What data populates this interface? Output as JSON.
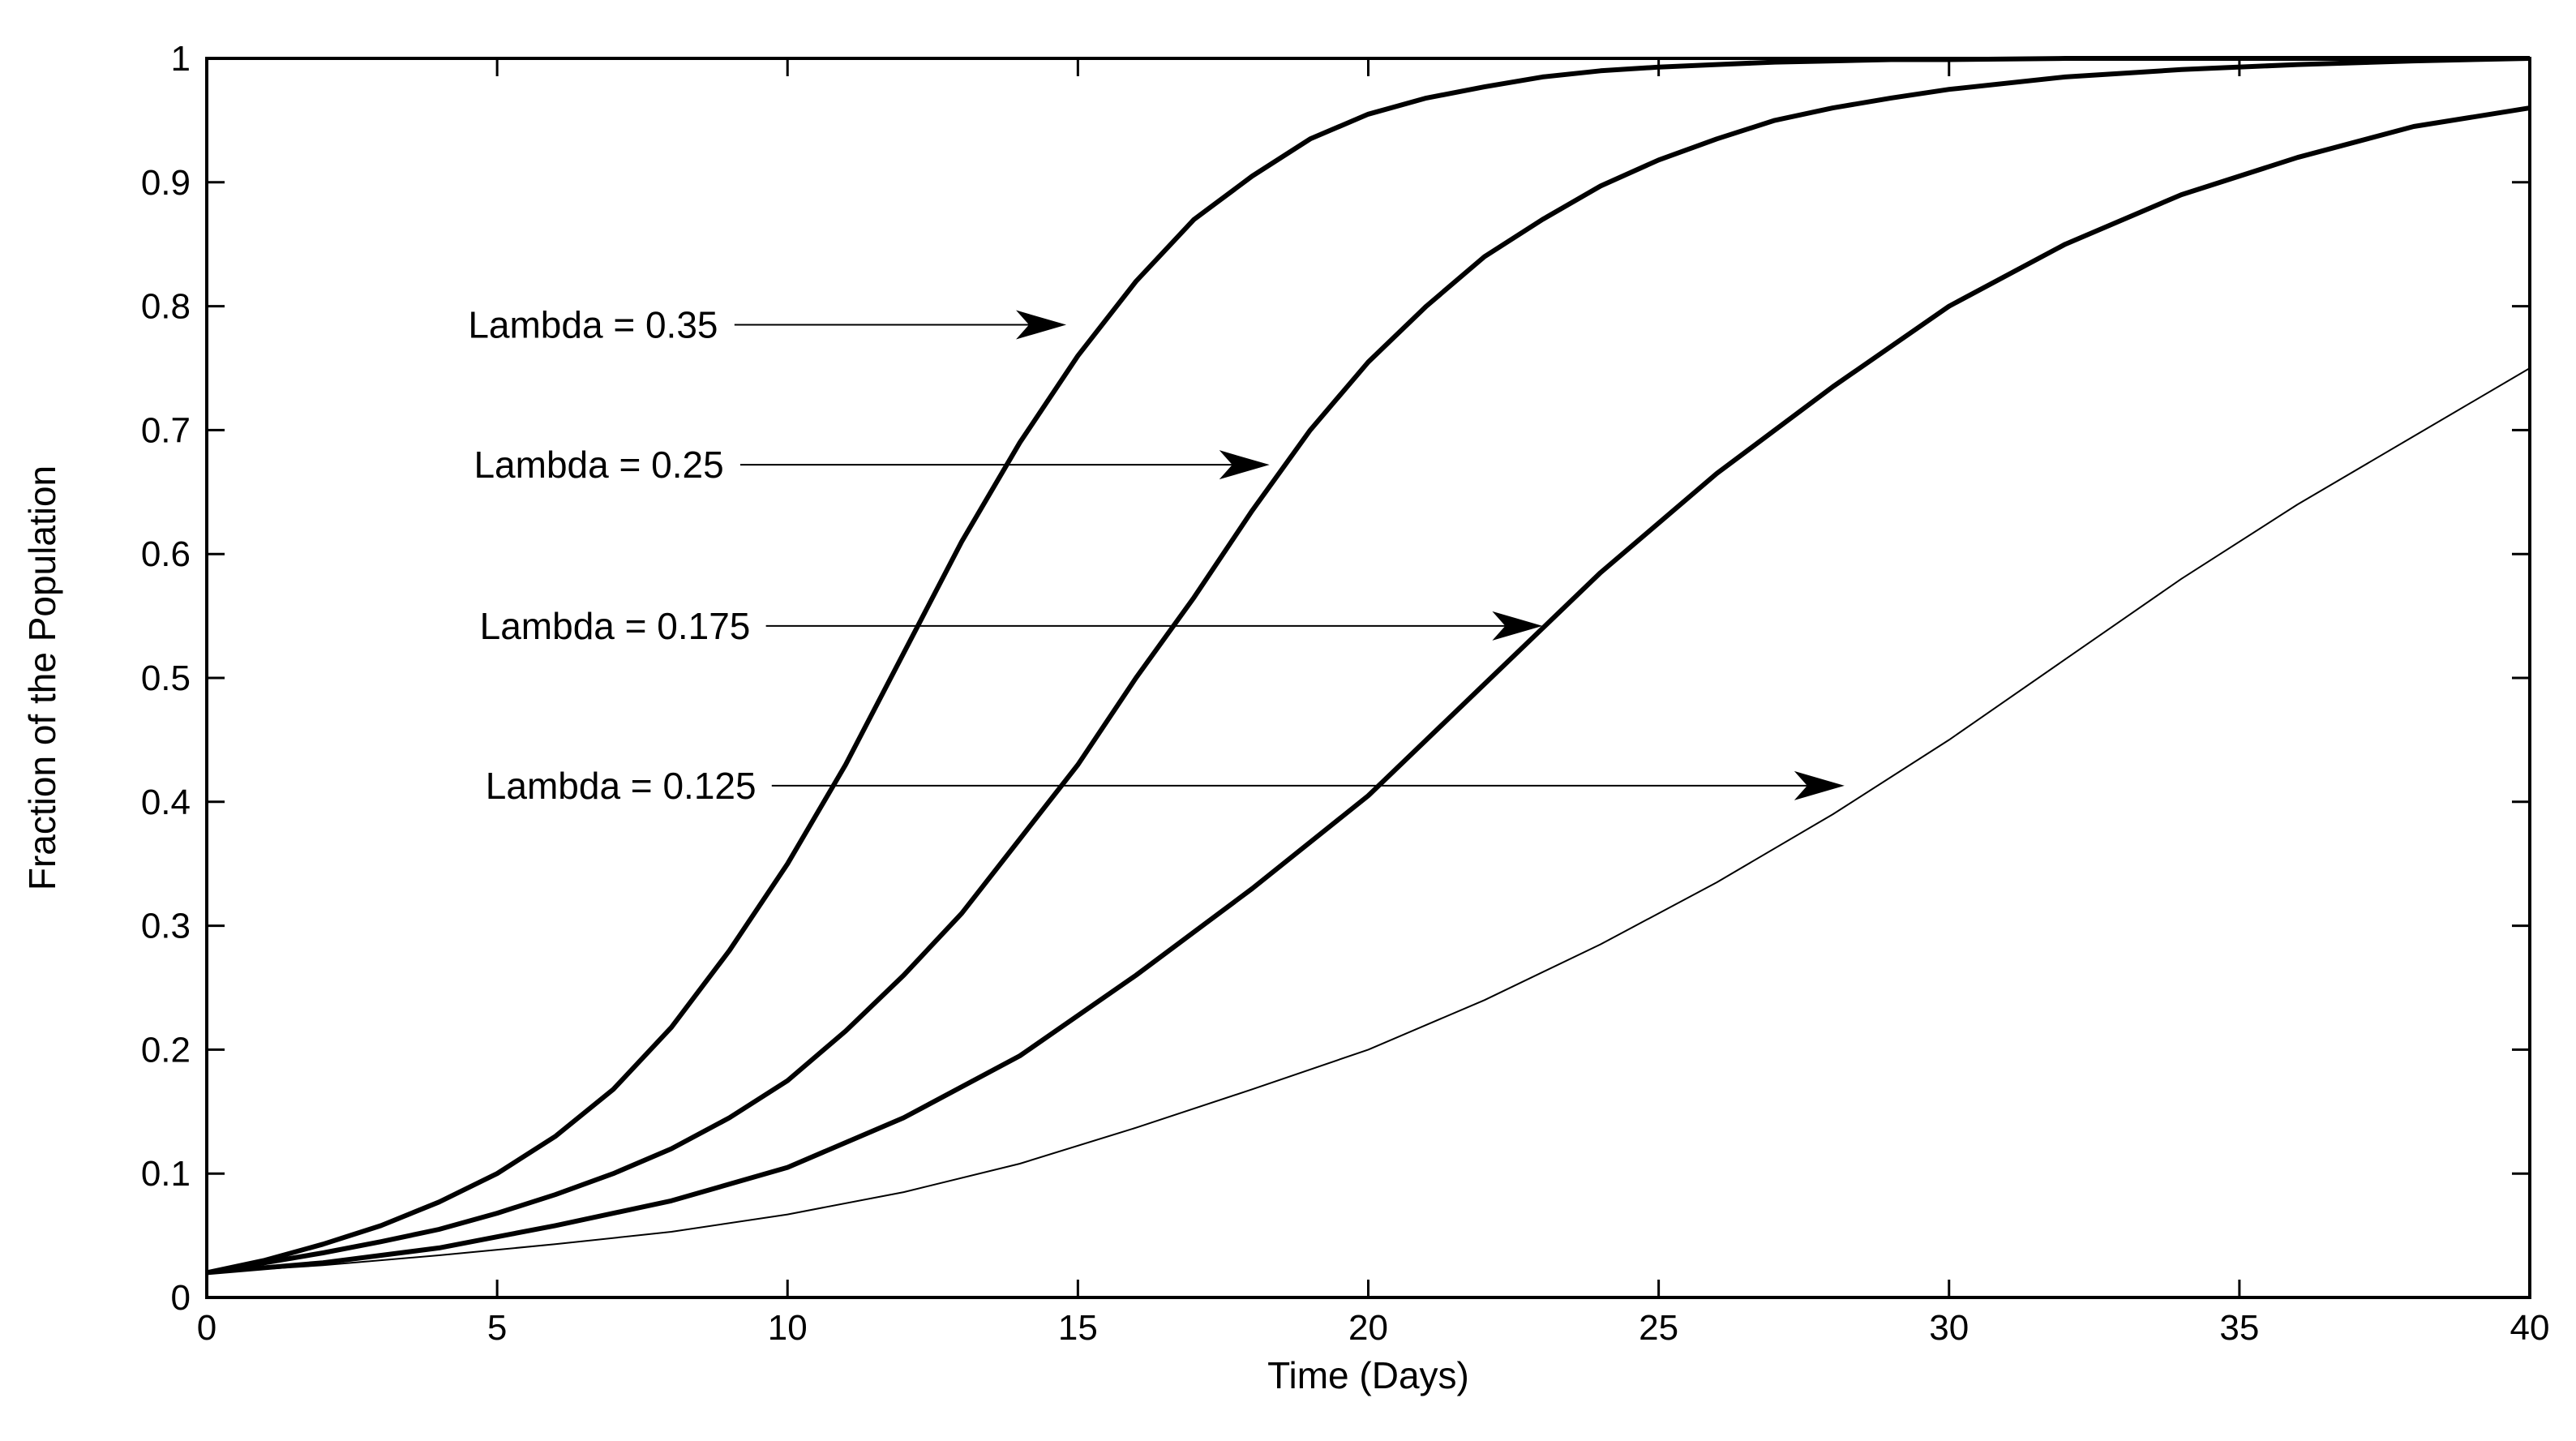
{
  "chart_data": {
    "type": "line",
    "title": "",
    "xlabel": "Time (Days)",
    "ylabel": "Fraction of the Population",
    "xlim": [
      0,
      40
    ],
    "ylim": [
      0,
      1
    ],
    "grid": false,
    "x_ticks": [
      0,
      5,
      10,
      15,
      20,
      25,
      30,
      35,
      40
    ],
    "x_tick_labels": [
      "0",
      "5",
      "10",
      "15",
      "20",
      "25",
      "30",
      "35",
      "40"
    ],
    "y_ticks": [
      0,
      0.1,
      0.2,
      0.3,
      0.4,
      0.5,
      0.6,
      0.7,
      0.8,
      0.9,
      1
    ],
    "y_tick_labels": [
      "0",
      "0.1",
      "0.2",
      "0.3",
      "0.4",
      "0.5",
      "0.6",
      "0.7",
      "0.8",
      "0.9",
      "1"
    ],
    "series": [
      {
        "x": [
          0,
          1,
          2,
          3,
          4,
          5,
          6,
          7,
          8,
          9,
          10,
          11,
          12,
          13,
          14,
          15,
          16,
          17,
          18,
          19,
          20,
          21,
          22,
          23,
          24,
          25,
          26,
          27,
          28,
          29,
          30,
          32,
          34,
          36,
          38,
          40
        ],
        "values": [
          0.02,
          0.03,
          0.043,
          0.058,
          0.077,
          0.1,
          0.13,
          0.168,
          0.218,
          0.28,
          0.35,
          0.43,
          0.52,
          0.61,
          0.69,
          0.76,
          0.82,
          0.87,
          0.905,
          0.935,
          0.955,
          0.968,
          0.977,
          0.985,
          0.99,
          0.993,
          0.995,
          0.997,
          0.998,
          0.999,
          0.999,
          1.0,
          1.0,
          1.0,
          1.0,
          1.0
        ]
      },
      {
        "x": [
          0,
          1,
          2,
          3,
          4,
          5,
          6,
          7,
          8,
          9,
          10,
          11,
          12,
          13,
          14,
          15,
          16,
          17,
          18,
          19,
          20,
          21,
          22,
          23,
          24,
          25,
          26,
          27,
          28,
          29,
          30,
          32,
          34,
          36,
          38,
          40
        ],
        "values": [
          0.02,
          0.028,
          0.036,
          0.045,
          0.055,
          0.068,
          0.083,
          0.1,
          0.12,
          0.145,
          0.175,
          0.215,
          0.26,
          0.31,
          0.37,
          0.43,
          0.5,
          0.565,
          0.635,
          0.7,
          0.755,
          0.8,
          0.84,
          0.87,
          0.897,
          0.918,
          0.935,
          0.95,
          0.96,
          0.968,
          0.975,
          0.985,
          0.991,
          0.995,
          0.998,
          1.0
        ]
      },
      {
        "x": [
          0,
          2,
          4,
          6,
          8,
          10,
          12,
          14,
          16,
          18,
          20,
          22,
          24,
          26,
          28,
          30,
          32,
          34,
          36,
          38,
          40
        ],
        "values": [
          0.02,
          0.028,
          0.04,
          0.058,
          0.078,
          0.105,
          0.145,
          0.195,
          0.26,
          0.33,
          0.405,
          0.495,
          0.585,
          0.665,
          0.735,
          0.8,
          0.85,
          0.89,
          0.92,
          0.945,
          0.96
        ]
      },
      {
        "x": [
          0,
          2,
          4,
          6,
          8,
          10,
          12,
          14,
          16,
          18,
          20,
          22,
          24,
          26,
          28,
          30,
          32,
          34,
          36,
          38,
          40
        ],
        "values": [
          0.02,
          0.026,
          0.034,
          0.043,
          0.053,
          0.067,
          0.085,
          0.108,
          0.137,
          0.168,
          0.2,
          0.24,
          0.285,
          0.335,
          0.39,
          0.45,
          0.515,
          0.58,
          0.64,
          0.695,
          0.75
        ]
      }
    ],
    "annotations": [
      {
        "text": "Lambda = 0.35",
        "x": 4.5,
        "y": 0.785,
        "arrow_to": [
          14.8,
          0.785
        ]
      },
      {
        "text": "Lambda = 0.25",
        "x": 4.6,
        "y": 0.672,
        "arrow_to": [
          18.3,
          0.672
        ]
      },
      {
        "text": "Lambda = 0.175",
        "x": 4.7,
        "y": 0.542,
        "arrow_to": [
          23.0,
          0.542
        ]
      },
      {
        "text": "Lambda = 0.125",
        "x": 4.8,
        "y": 0.413,
        "arrow_to": [
          28.2,
          0.413
        ]
      }
    ]
  }
}
